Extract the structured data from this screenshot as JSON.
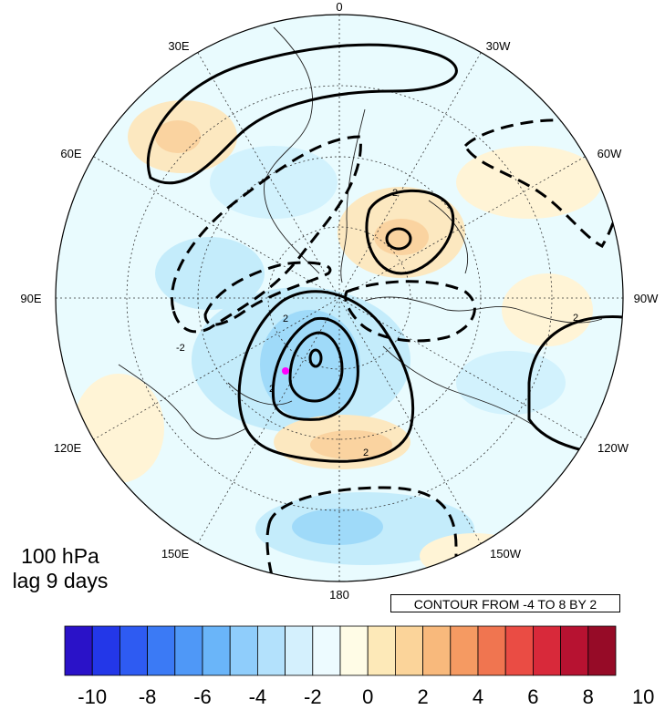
{
  "map": {
    "longitude_labels": [
      {
        "id": "lon-0",
        "text": "0"
      },
      {
        "id": "lon-30w",
        "text": "30W"
      },
      {
        "id": "lon-60w",
        "text": "60W"
      },
      {
        "id": "lon-90w",
        "text": "90W"
      },
      {
        "id": "lon-120w",
        "text": "120W"
      },
      {
        "id": "lon-150w",
        "text": "150W"
      },
      {
        "id": "lon-180",
        "text": "180"
      },
      {
        "id": "lon-150e",
        "text": "150E"
      },
      {
        "id": "lon-120e",
        "text": "120E"
      },
      {
        "id": "lon-90e",
        "text": "90E"
      },
      {
        "id": "lon-60e",
        "text": "60E"
      },
      {
        "id": "lon-30e",
        "text": "30E"
      }
    ],
    "contour_labels": [
      "2",
      "2",
      "2",
      "-2",
      "2",
      "2"
    ],
    "marker_color": "#ff00ff"
  },
  "annotation": {
    "level": "100 hPa",
    "lag": "lag 9 days",
    "contour_info": "CONTOUR FROM -4 TO 8 BY 2"
  },
  "colorbar": {
    "colors": [
      "#2a12c8",
      "#2337e8",
      "#2e5bf2",
      "#3b7af5",
      "#4f98f7",
      "#6ab5f9",
      "#8fcdfb",
      "#b3e1fc",
      "#d4f0fd",
      "#edfbff",
      "#fffce6",
      "#fde9b8",
      "#fbd49a",
      "#f8b97c",
      "#f59a62",
      "#f07550",
      "#ea4c44",
      "#d8293a",
      "#b71231",
      "#960b27"
    ],
    "labels": [
      "-10",
      "-8",
      "-6",
      "-4",
      "-2",
      "0",
      "2",
      "4",
      "6",
      "8",
      "10"
    ]
  }
}
